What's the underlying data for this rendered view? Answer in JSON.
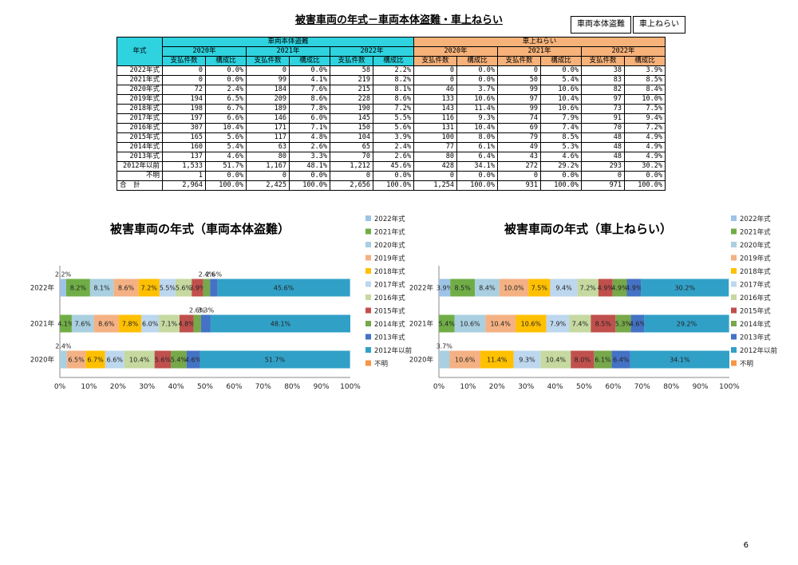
{
  "title": "被害車両の年式－車両本体盗難・車上ねらい",
  "legend_boxes": [
    "車両本体盗難",
    "車上ねらい"
  ],
  "page_number": "6",
  "table": {
    "corner": "年式",
    "groups": [
      "車両本体盗難",
      "車上ねらい"
    ],
    "years": [
      "2020年",
      "2021年",
      "2022年"
    ],
    "subheaders": [
      "支払件数",
      "構成比"
    ],
    "rows": [
      {
        "label": "2022年式",
        "cells": [
          "0",
          "0.0%",
          "0",
          "0.0%",
          "58",
          "2.2%",
          "0",
          "0.0%",
          "0",
          "0.0%",
          "38",
          "3.9%"
        ]
      },
      {
        "label": "2021年式",
        "cells": [
          "0",
          "0.0%",
          "99",
          "4.1%",
          "219",
          "8.2%",
          "0",
          "0.0%",
          "50",
          "5.4%",
          "83",
          "8.5%"
        ]
      },
      {
        "label": "2020年式",
        "cells": [
          "72",
          "2.4%",
          "184",
          "7.6%",
          "215",
          "8.1%",
          "46",
          "3.7%",
          "99",
          "10.6%",
          "82",
          "8.4%"
        ]
      },
      {
        "label": "2019年式",
        "cells": [
          "194",
          "6.5%",
          "209",
          "8.6%",
          "228",
          "8.6%",
          "133",
          "10.6%",
          "97",
          "10.4%",
          "97",
          "10.0%"
        ]
      },
      {
        "label": "2018年式",
        "cells": [
          "198",
          "6.7%",
          "189",
          "7.8%",
          "190",
          "7.2%",
          "143",
          "11.4%",
          "99",
          "10.6%",
          "73",
          "7.5%"
        ]
      },
      {
        "label": "2017年式",
        "cells": [
          "197",
          "6.6%",
          "146",
          "6.0%",
          "145",
          "5.5%",
          "116",
          "9.3%",
          "74",
          "7.9%",
          "91",
          "9.4%"
        ]
      },
      {
        "label": "2016年式",
        "cells": [
          "307",
          "10.4%",
          "171",
          "7.1%",
          "150",
          "5.6%",
          "131",
          "10.4%",
          "69",
          "7.4%",
          "70",
          "7.2%"
        ]
      },
      {
        "label": "2015年式",
        "cells": [
          "165",
          "5.6%",
          "117",
          "4.8%",
          "104",
          "3.9%",
          "100",
          "8.0%",
          "79",
          "8.5%",
          "48",
          "4.9%"
        ]
      },
      {
        "label": "2014年式",
        "cells": [
          "160",
          "5.4%",
          "63",
          "2.6%",
          "65",
          "2.4%",
          "77",
          "6.1%",
          "49",
          "5.3%",
          "48",
          "4.9%"
        ]
      },
      {
        "label": "2013年式",
        "cells": [
          "137",
          "4.6%",
          "80",
          "3.3%",
          "70",
          "2.6%",
          "80",
          "6.4%",
          "43",
          "4.6%",
          "48",
          "4.9%"
        ]
      },
      {
        "label": "2012年以前",
        "cells": [
          "1,533",
          "51.7%",
          "1,167",
          "48.1%",
          "1,212",
          "45.6%",
          "428",
          "34.1%",
          "272",
          "29.2%",
          "293",
          "30.2%"
        ]
      },
      {
        "label": "不明",
        "cells": [
          "1",
          "0.0%",
          "0",
          "0.0%",
          "0",
          "0.0%",
          "0",
          "0.0%",
          "0",
          "0.0%",
          "0",
          "0.0%"
        ]
      },
      {
        "label": "合　計",
        "cells": [
          "2,964",
          "100.0%",
          "2,425",
          "100.0%",
          "2,656",
          "100.0%",
          "1,254",
          "100.0%",
          "931",
          "100.0%",
          "971",
          "100.0%"
        ]
      }
    ]
  },
  "chart_data": [
    {
      "type": "bar",
      "orientation": "horizontal-stacked-100",
      "title": "被害車両の年式（車両本体盗難）",
      "categories": [
        "2022年",
        "2021年",
        "2020年"
      ],
      "xlim": [
        0,
        100
      ],
      "x_ticks": [
        "0%",
        "10%",
        "20%",
        "30%",
        "40%",
        "50%",
        "60%",
        "70%",
        "80%",
        "90%",
        "100%"
      ],
      "legend_position": "right",
      "series": [
        {
          "name": "2022年式",
          "color": "#9dc3e6",
          "values": [
            2.2,
            0,
            0
          ],
          "labels": [
            "2.2%",
            "",
            ""
          ]
        },
        {
          "name": "2021年式",
          "color": "#70ad47",
          "values": [
            8.2,
            4.1,
            0
          ],
          "labels": [
            "8.2%",
            "4.1%",
            ""
          ]
        },
        {
          "name": "2020年式",
          "color": "#a9cfe0",
          "values": [
            8.1,
            7.6,
            2.4
          ],
          "labels": [
            "8.1%",
            "7.6%",
            "2.4%"
          ]
        },
        {
          "name": "2019年式",
          "color": "#f4b183",
          "values": [
            8.6,
            8.6,
            6.5
          ],
          "labels": [
            "8.6%",
            "8.6%",
            "6.5%"
          ]
        },
        {
          "name": "2018年式",
          "color": "#ffc000",
          "values": [
            7.2,
            7.8,
            6.7
          ],
          "labels": [
            "7.2%",
            "7.8%",
            "6.7%"
          ]
        },
        {
          "name": "2017年式",
          "color": "#bdd7ee",
          "values": [
            5.5,
            6.0,
            6.6
          ],
          "labels": [
            "5.5%",
            "6.0%",
            "6.6%"
          ]
        },
        {
          "name": "2016年式",
          "color": "#c5d9a0",
          "values": [
            5.6,
            7.1,
            10.4
          ],
          "labels": [
            "5.6%",
            "7.1%",
            "10.4%"
          ]
        },
        {
          "name": "2015年式",
          "color": "#c0504d",
          "values": [
            3.9,
            4.8,
            5.6
          ],
          "labels": [
            "3.9%",
            "4.8%",
            "5.6%"
          ]
        },
        {
          "name": "2014年式",
          "color": "#77a84a",
          "values": [
            2.4,
            2.6,
            5.4
          ],
          "labels": [
            "2.4%",
            "2.6%",
            "5.4%"
          ]
        },
        {
          "name": "2013年式",
          "color": "#4472c4",
          "values": [
            2.6,
            3.3,
            4.6
          ],
          "labels": [
            "2.6%",
            "3.3%",
            "4.6%"
          ]
        },
        {
          "name": "2012年以前",
          "color": "#31a0c7",
          "values": [
            45.6,
            48.1,
            51.7
          ],
          "labels": [
            "45.6%",
            "48.1%",
            "51.7%"
          ]
        },
        {
          "name": "不明",
          "color": "#f79646",
          "values": [
            0,
            0,
            0
          ],
          "labels": [
            "",
            "",
            ""
          ]
        }
      ]
    },
    {
      "type": "bar",
      "orientation": "horizontal-stacked-100",
      "title": "被害車両の年式（車上ねらい）",
      "categories": [
        "2022年",
        "2021年",
        "2020年"
      ],
      "xlim": [
        0,
        100
      ],
      "x_ticks": [
        "0%",
        "10%",
        "20%",
        "30%",
        "40%",
        "50%",
        "60%",
        "70%",
        "80%",
        "90%",
        "100%"
      ],
      "legend_position": "right",
      "series": [
        {
          "name": "2022年式",
          "color": "#9dc3e6",
          "values": [
            3.9,
            0,
            0
          ],
          "labels": [
            "3.9%",
            "",
            ""
          ]
        },
        {
          "name": "2021年式",
          "color": "#70ad47",
          "values": [
            8.5,
            5.4,
            0
          ],
          "labels": [
            "8.5%",
            "5.4%",
            ""
          ]
        },
        {
          "name": "2020年式",
          "color": "#a9cfe0",
          "values": [
            8.4,
            10.6,
            3.7
          ],
          "labels": [
            "8.4%",
            "10.6%",
            "3.7%"
          ]
        },
        {
          "name": "2019年式",
          "color": "#f4b183",
          "values": [
            10.0,
            10.4,
            10.6
          ],
          "labels": [
            "10.0%",
            "10.4%",
            "10.6%"
          ]
        },
        {
          "name": "2018年式",
          "color": "#ffc000",
          "values": [
            7.5,
            10.6,
            11.4
          ],
          "labels": [
            "7.5%",
            "10.6%",
            "11.4%"
          ]
        },
        {
          "name": "2017年式",
          "color": "#bdd7ee",
          "values": [
            9.4,
            7.9,
            9.3
          ],
          "labels": [
            "9.4%",
            "7.9%",
            "9.3%"
          ]
        },
        {
          "name": "2016年式",
          "color": "#c5d9a0",
          "values": [
            7.2,
            7.4,
            10.4
          ],
          "labels": [
            "7.2%",
            "7.4%",
            "10.4%"
          ]
        },
        {
          "name": "2015年式",
          "color": "#c0504d",
          "values": [
            4.9,
            8.5,
            8.0
          ],
          "labels": [
            "4.9%",
            "8.5%",
            "8.0%"
          ]
        },
        {
          "name": "2014年式",
          "color": "#77a84a",
          "values": [
            4.9,
            5.3,
            6.1
          ],
          "labels": [
            "4.9%",
            "5.3%",
            "6.1%"
          ]
        },
        {
          "name": "2013年式",
          "color": "#4472c4",
          "values": [
            4.9,
            4.6,
            6.4
          ],
          "labels": [
            "4.9%",
            "4.6%",
            "6.4%"
          ]
        },
        {
          "name": "2012年以前",
          "color": "#31a0c7",
          "values": [
            30.2,
            29.2,
            34.1
          ],
          "labels": [
            "30.2%",
            "29.2%",
            "34.1%"
          ]
        },
        {
          "name": "不明",
          "color": "#f79646",
          "values": [
            0,
            0,
            0
          ],
          "labels": [
            "",
            "",
            ""
          ]
        }
      ]
    }
  ]
}
